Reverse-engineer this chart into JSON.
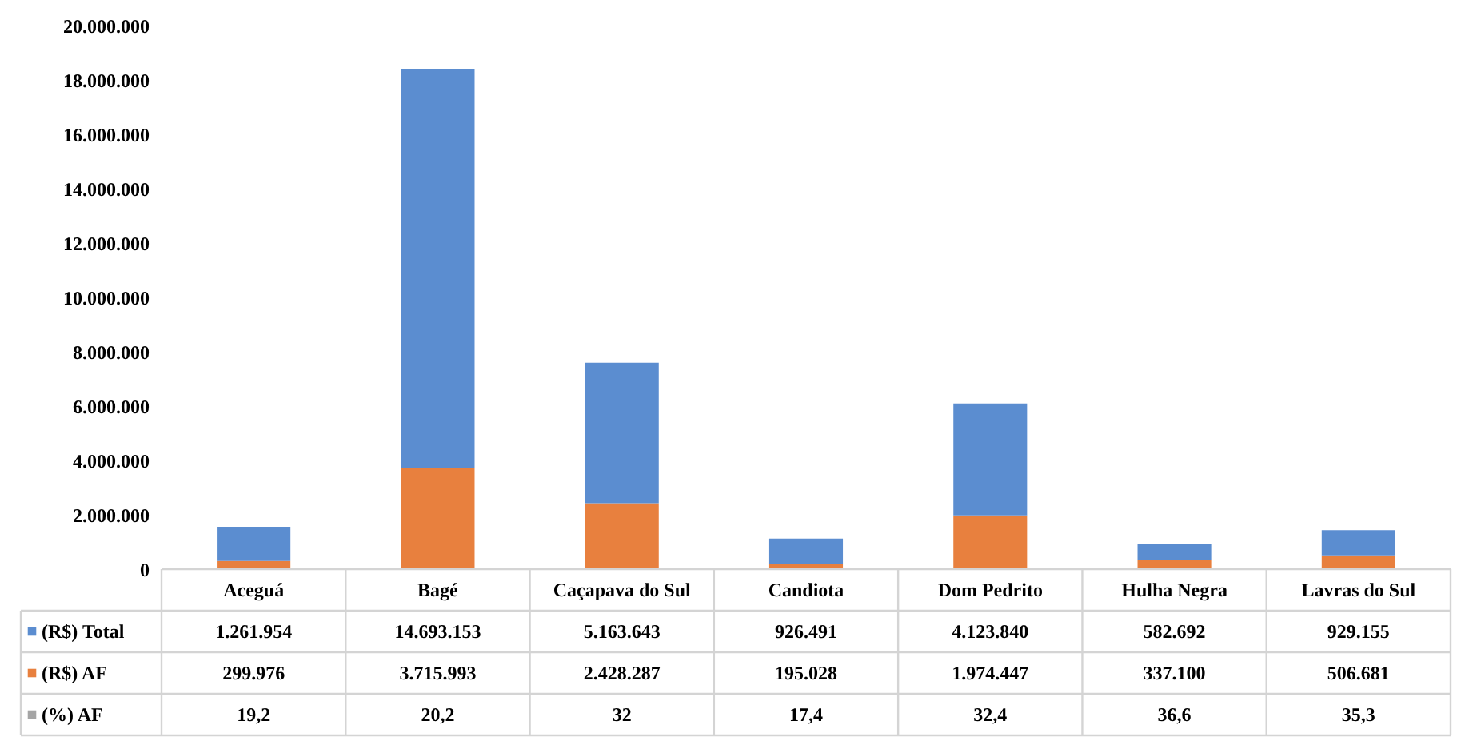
{
  "chart_data": {
    "type": "bar",
    "stacked": true,
    "categories": [
      "Aceguá",
      "Bagé",
      "Caçapava do Sul",
      "Candiota",
      "Dom Pedrito",
      "Hulha Negra",
      "Lavras do Sul"
    ],
    "series": [
      {
        "name": "(%) AF",
        "color": "#a5a5a5",
        "values": [
          19.2,
          20.2,
          32,
          17.4,
          32.4,
          36.6,
          35.3
        ],
        "value_labels": [
          "19,2",
          "20,2",
          "32",
          "17,4",
          "32,4",
          "36,6",
          "35,3"
        ]
      },
      {
        "name": "(R$) AF",
        "color": "#e8803e",
        "values": [
          299976,
          3715993,
          2428287,
          195028,
          1974447,
          337100,
          506681
        ],
        "value_labels": [
          "299.976",
          "3.715.993",
          "2.428.287",
          "195.028",
          "1.974.447",
          "337.100",
          "506.681"
        ]
      },
      {
        "name": "(R$) Total",
        "color": "#5b8dd0",
        "values": [
          1261954,
          14693153,
          5163643,
          926491,
          4123840,
          582692,
          929155
        ],
        "value_labels": [
          "1.261.954",
          "14.693.153",
          "5.163.643",
          "926.491",
          "4.123.840",
          "582.692",
          "929.155"
        ]
      }
    ],
    "ylim": [
      0,
      20000000
    ],
    "yticks": [
      0,
      {
        "value": 2000000,
        "label": "2.000.000"
      },
      {
        "value": 4000000,
        "label": "4.000.000"
      },
      {
        "value": 6000000,
        "label": "6.000.000"
      },
      {
        "value": 8000000,
        "label": "8.000.000"
      },
      {
        "value": 10000000,
        "label": "10.000.000"
      },
      {
        "value": 12000000,
        "label": "12.000.000"
      },
      {
        "value": 14000000,
        "label": "14.000.000"
      },
      {
        "value": 16000000,
        "label": "16.000.000"
      },
      {
        "value": 18000000,
        "label": "18.000.000"
      },
      {
        "value": 20000000,
        "label": "20.000.000"
      }
    ],
    "grid": false,
    "legend": "bottom"
  }
}
